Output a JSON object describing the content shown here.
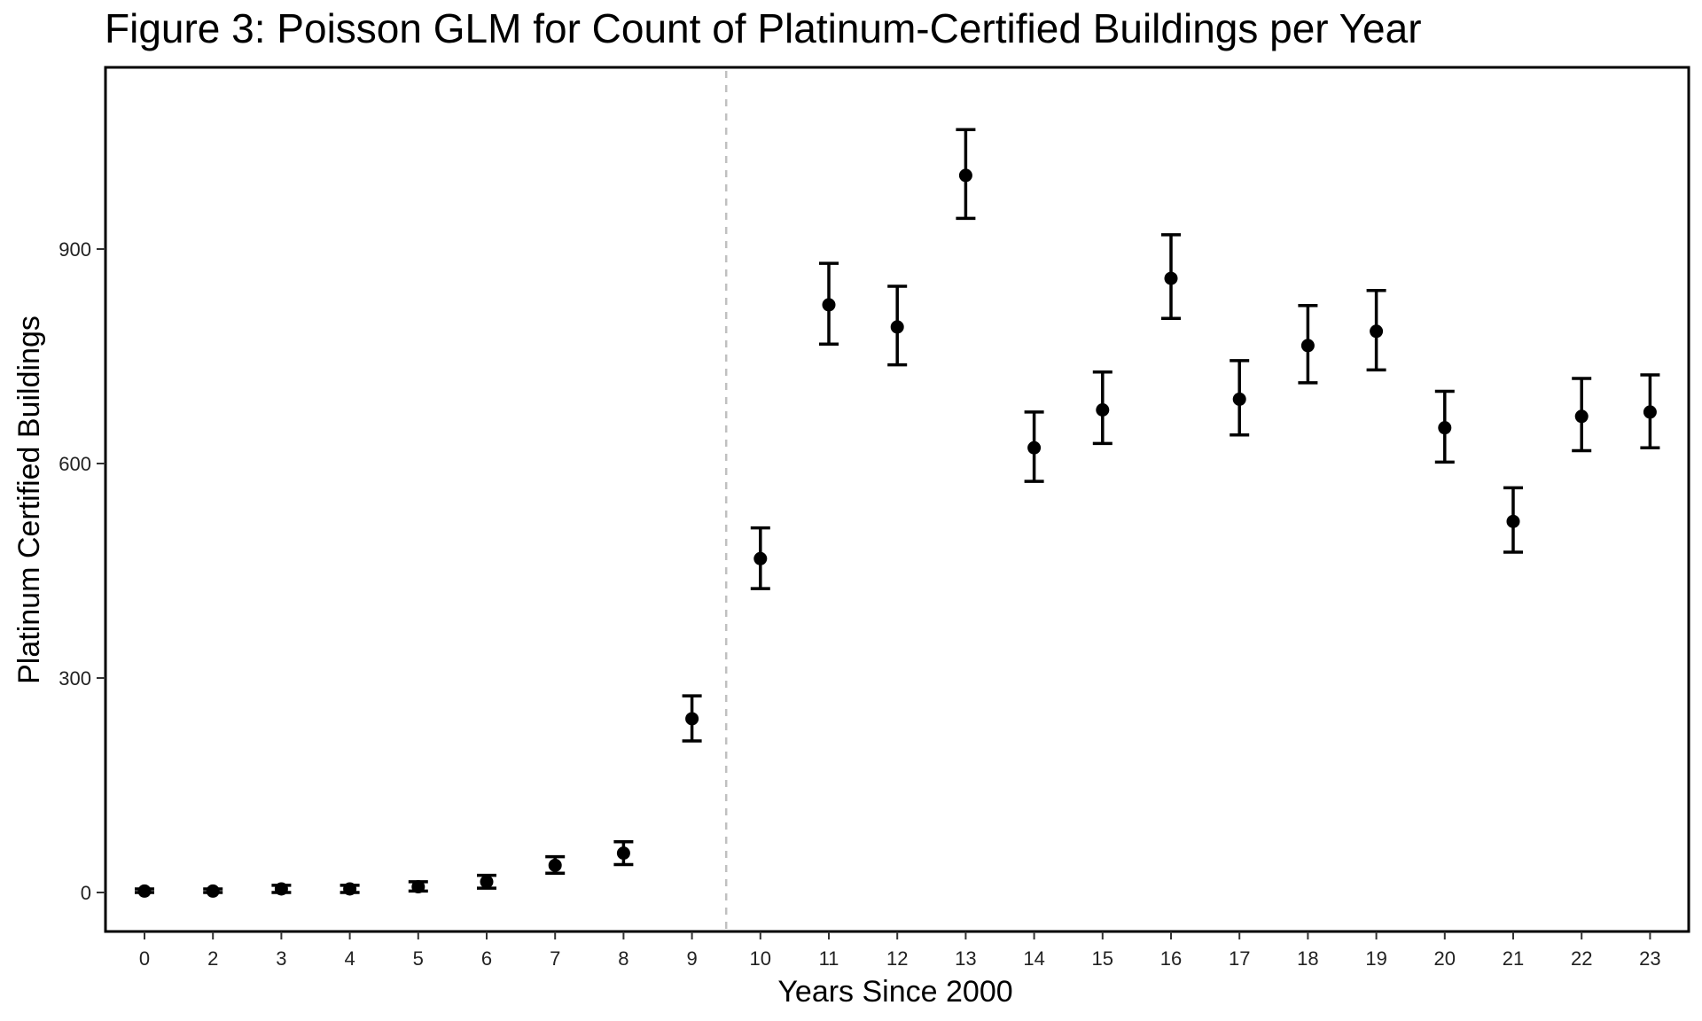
{
  "chart_data": {
    "type": "scatter",
    "title": "Figure 3: Poisson GLM for Count of Platinum-Certified Buildings per Year",
    "xlabel": "Years Since 2000",
    "ylabel": "Platinum Certified Buildings",
    "categories": [
      "0",
      "2",
      "3",
      "4",
      "5",
      "6",
      "7",
      "8",
      "9",
      "10",
      "11",
      "12",
      "13",
      "14",
      "15",
      "16",
      "17",
      "18",
      "19",
      "20",
      "21",
      "22",
      "23"
    ],
    "series": [
      {
        "name": "estimate",
        "values": [
          2,
          2,
          5,
          5,
          8,
          15,
          38,
          55,
          243,
          467,
          822,
          791,
          1003,
          622,
          675,
          859,
          690,
          765,
          785,
          650,
          519,
          666,
          672
        ],
        "lower": [
          0,
          0,
          0,
          0,
          2,
          6,
          27,
          39,
          212,
          425,
          767,
          738,
          943,
          575,
          628,
          803,
          640,
          713,
          731,
          602,
          476,
          618,
          622
        ],
        "upper": [
          5,
          5,
          10,
          10,
          15,
          24,
          50,
          71,
          275,
          510,
          880,
          848,
          1067,
          672,
          728,
          920,
          744,
          821,
          842,
          701,
          566,
          719,
          724
        ]
      }
    ],
    "yticks": [
      0,
      300,
      600,
      900
    ],
    "ylim": [
      -52,
      1120
    ],
    "reference_line": {
      "between": [
        "9",
        "10"
      ],
      "style": "dashed",
      "color": "#c0c0c0"
    },
    "grid": false,
    "legend": "none",
    "colors": {
      "points": "#000000",
      "frame": "#000000"
    }
  }
}
